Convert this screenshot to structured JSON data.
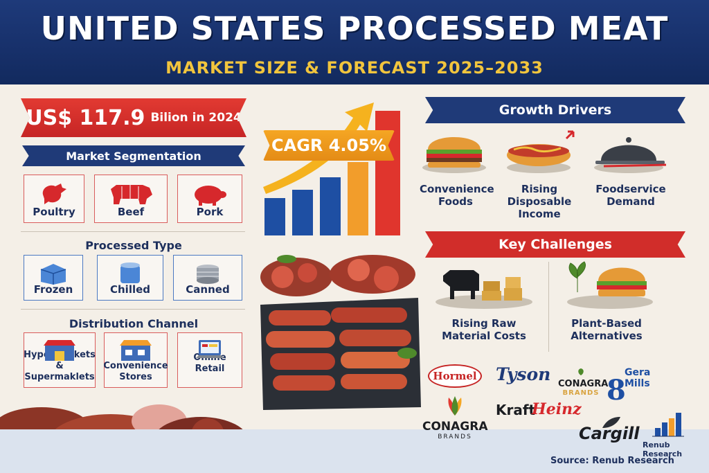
{
  "header": {
    "title": "UNITED STATES PROCESSED MEAT",
    "subtitle": "MARKET SIZE & FORECAST 2025–2033"
  },
  "market_value": {
    "amount": "US$ 117.9",
    "unit": "Bilion in 2024"
  },
  "cagr": "CAGR 4.05%",
  "segmentation": {
    "title": "Market Segmentation",
    "items": [
      "Poultry",
      "Beef",
      "Pork"
    ]
  },
  "processed_type": {
    "title": "Processed Type",
    "items": [
      "Frozen",
      "Chilled",
      "Canned"
    ]
  },
  "distribution": {
    "title": "Distribution Channel",
    "items": [
      "Hypermarkets & Supermaklets",
      "Convenience Stores",
      "Online Retail"
    ]
  },
  "growth_drivers": {
    "title": "Growth Drivers",
    "items": [
      "Convenience Foods",
      "Rising Disposable Income",
      "Foodservice Demand"
    ]
  },
  "challenges": {
    "title": "Key Challenges",
    "items": [
      "Rising Raw Material Costs",
      "Plant-Based Alternatives"
    ]
  },
  "brands": {
    "hormel": "Hormel",
    "tyson": "Tyson",
    "conagra_small": "CONAGRA",
    "conagra_small_sub": "BRANDS",
    "general_mills": "Gera Mills",
    "conagra": "CONAGRA",
    "conagra_sub": "BRANDS",
    "kraft": "Kraft",
    "heinz": "Heinz",
    "cargill": "Cargill",
    "renub": "Renub Research"
  },
  "source": "Source: Renub   Research",
  "colors": {
    "navy": "#1f3a78",
    "red": "#d12d2a",
    "gold": "#f2c53d",
    "orange": "#f5a623"
  }
}
